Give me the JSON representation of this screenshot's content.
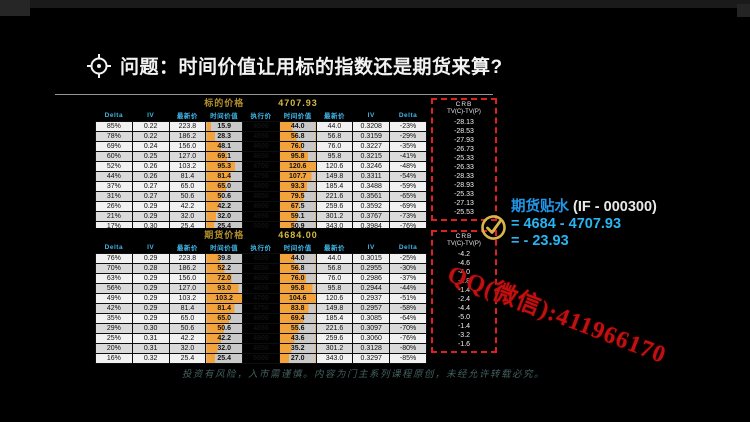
{
  "title": {
    "text": "问题：时间价值让用标的指数还是期货来算?"
  },
  "colors": {
    "bar_orange": "#f2a33c",
    "bar_rest": "#c9c9c9",
    "header_cyan": "#3fb6e8",
    "box_border_red": "#e02020",
    "caption_gold": "#b3902c",
    "watermark_red": "#c11010",
    "annotation_blue": "#2196e8",
    "annotation_cyan": "#29b5f2"
  },
  "tables": [
    {
      "caption_label": "标的价格",
      "caption_value": "4707.93",
      "headers": [
        "Delta",
        "IV",
        "最新价",
        "时间价值",
        "执行价",
        "时间价值",
        "最新价",
        "IV",
        "Delta"
      ],
      "side_title": "CRB",
      "side_subtitle": "TV(C)-TV(P)",
      "rows": [
        [
          "85%",
          "0.22",
          "223.8",
          "15.9",
          "4500",
          "44.0",
          "44.0",
          "0.3208",
          "-23%"
        ],
        [
          "78%",
          "0.22",
          "186.2",
          "28.3",
          "4550",
          "56.8",
          "56.8",
          "0.3159",
          "-29%"
        ],
        [
          "69%",
          "0.24",
          "156.0",
          "48.1",
          "4600",
          "76.0",
          "76.0",
          "0.3227",
          "-35%"
        ],
        [
          "60%",
          "0.25",
          "127.0",
          "69.1",
          "4650",
          "95.8",
          "95.8",
          "0.3215",
          "-41%"
        ],
        [
          "52%",
          "0.26",
          "103.2",
          "95.3",
          "4700",
          "120.6",
          "120.6",
          "0.3246",
          "-48%"
        ],
        [
          "44%",
          "0.26",
          "81.4",
          "81.4",
          "4750",
          "107.7",
          "149.8",
          "0.3311",
          "-54%"
        ],
        [
          "37%",
          "0.27",
          "65.0",
          "65.0",
          "4800",
          "93.3",
          "185.4",
          "0.3488",
          "-59%"
        ],
        [
          "31%",
          "0.27",
          "50.6",
          "50.6",
          "4850",
          "79.5",
          "221.6",
          "0.3561",
          "-65%"
        ],
        [
          "26%",
          "0.29",
          "42.2",
          "42.2",
          "4900",
          "67.5",
          "259.6",
          "0.3592",
          "-69%"
        ],
        [
          "21%",
          "0.29",
          "32.0",
          "32.0",
          "4950",
          "59.1",
          "301.2",
          "0.3767",
          "-73%"
        ],
        [
          "17%",
          "0.30",
          "25.4",
          "25.4",
          "5000",
          "50.9",
          "343.0",
          "0.3984",
          "-76%"
        ]
      ],
      "side_values": [
        "-28.13",
        "-28.53",
        "-27.93",
        "-26.73",
        "-25.33",
        "-26.33",
        "-28.33",
        "-28.93",
        "-25.33",
        "-27.13",
        "-25.53"
      ]
    },
    {
      "caption_label": "期货价格",
      "caption_value": "4684.00",
      "headers": [
        "Delta",
        "IV",
        "最新价",
        "时间价值",
        "执行价",
        "时间价值",
        "最新价",
        "IV",
        "Delta"
      ],
      "side_title": "CRB",
      "side_subtitle": "TV(C)-TV(P)",
      "rows": [
        [
          "76%",
          "0.29",
          "223.8",
          "39.8",
          "4500",
          "44.0",
          "44.0",
          "0.3015",
          "-25%"
        ],
        [
          "70%",
          "0.28",
          "186.2",
          "52.2",
          "4550",
          "56.8",
          "56.8",
          "0.2955",
          "-30%"
        ],
        [
          "63%",
          "0.29",
          "156.0",
          "72.0",
          "4600",
          "76.0",
          "76.0",
          "0.2986",
          "-37%"
        ],
        [
          "56%",
          "0.29",
          "127.0",
          "93.0",
          "4650",
          "95.8",
          "95.8",
          "0.2944",
          "-44%"
        ],
        [
          "49%",
          "0.29",
          "103.2",
          "103.2",
          "4700",
          "104.6",
          "120.6",
          "0.2937",
          "-51%"
        ],
        [
          "42%",
          "0.29",
          "81.4",
          "81.4",
          "4750",
          "83.8",
          "149.8",
          "0.2957",
          "-58%"
        ],
        [
          "35%",
          "0.29",
          "65.0",
          "65.0",
          "4800",
          "69.4",
          "185.4",
          "0.3085",
          "-64%"
        ],
        [
          "29%",
          "0.30",
          "50.6",
          "50.6",
          "4850",
          "55.6",
          "221.6",
          "0.3097",
          "-70%"
        ],
        [
          "25%",
          "0.31",
          "42.2",
          "42.2",
          "4900",
          "43.6",
          "259.6",
          "0.3060",
          "-76%"
        ],
        [
          "20%",
          "0.31",
          "32.0",
          "32.0",
          "4950",
          "35.2",
          "301.2",
          "0.3128",
          "-80%"
        ],
        [
          "16%",
          "0.32",
          "25.4",
          "25.4",
          "5000",
          "27.0",
          "343.0",
          "0.3297",
          "-85%"
        ]
      ],
      "side_values": [
        "-4.2",
        "-4.6",
        "-4.0",
        "-2.8",
        "-1.4",
        "-2.4",
        "-4.4",
        "-5.0",
        "-1.4",
        "-3.2",
        "-1.6"
      ]
    }
  ],
  "annotation": {
    "label": "期货贴水",
    "code": "(IF - 000300)",
    "line2": "= 4684 - 4707.93",
    "line3": "= - 23.93"
  },
  "watermark": "QQ(微信):411966170",
  "disclaimer": "投资有风险，入市需谨慎。内容为门主系列课程原创，未经允许转载必究。"
}
